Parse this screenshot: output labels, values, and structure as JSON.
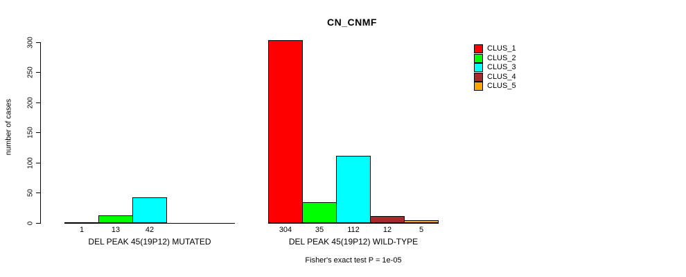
{
  "title": "CN_CNMF",
  "chart_data": {
    "type": "bar",
    "title": "CN_CNMF",
    "ylabel": "number of cases",
    "xlabel": "",
    "ylim": [
      0,
      300
    ],
    "yticks": [
      0,
      50,
      100,
      150,
      200,
      250,
      300
    ],
    "grid": false,
    "legend_position": "right",
    "legend": [
      {
        "name": "CLUS_1",
        "color": "#FF0000"
      },
      {
        "name": "CLUS_2",
        "color": "#00FF00"
      },
      {
        "name": "CLUS_3",
        "color": "#00FFFF"
      },
      {
        "name": "CLUS_4",
        "color": "#A52A2A"
      },
      {
        "name": "CLUS_5",
        "color": "#FFA500"
      }
    ],
    "groups": [
      {
        "label": "DEL PEAK 45(19P12) MUTATED",
        "values": [
          1,
          13,
          42,
          0,
          0
        ],
        "bar_labels": [
          "1",
          "13",
          "42",
          "",
          ""
        ]
      },
      {
        "label": "DEL PEAK 45(19P12) WILD-TYPE",
        "values": [
          304,
          35,
          112,
          12,
          5
        ],
        "bar_labels": [
          "304",
          "35",
          "112",
          "12",
          "5"
        ]
      }
    ],
    "annotation": "Fisher's exact test P = 1e-05"
  }
}
